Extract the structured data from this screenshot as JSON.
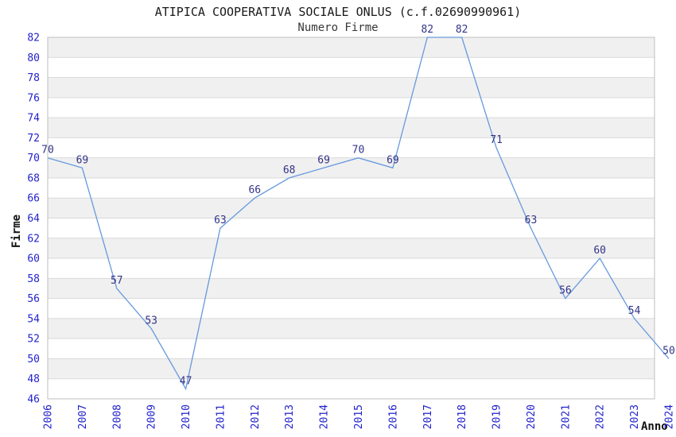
{
  "chart_data": {
    "type": "line",
    "title": "ATIPICA COOPERATIVA SOCIALE ONLUS (c.f.02690990961)",
    "subtitle": "Numero Firme",
    "xlabel": "Anno",
    "ylabel": "Firme",
    "x": [
      2006,
      2007,
      2008,
      2009,
      2010,
      2011,
      2012,
      2013,
      2014,
      2015,
      2016,
      2017,
      2018,
      2019,
      2020,
      2021,
      2022,
      2023,
      2024
    ],
    "values": [
      70,
      69,
      57,
      53,
      47,
      63,
      66,
      68,
      69,
      70,
      69,
      82,
      82,
      71,
      63,
      56,
      60,
      54,
      50
    ],
    "ylim": [
      46,
      82
    ],
    "ytick_step": 2,
    "grid": true,
    "legend": false,
    "bands_alternating": true,
    "point_labels_shown": true,
    "colors": {
      "line": "#6699dd",
      "tick_label": "#2222cc",
      "point_label": "#333388",
      "band": "#f0f0f0",
      "gridline": "#d9d9d9",
      "plot_border": "#bfbfbf",
      "title_text": "#1a1a1a"
    }
  }
}
